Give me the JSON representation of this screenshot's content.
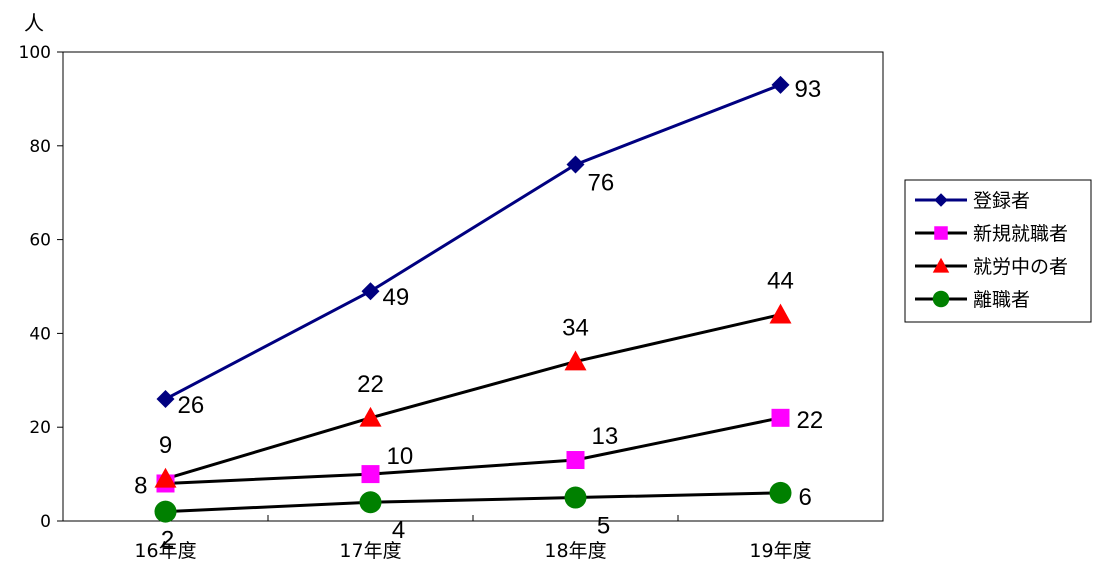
{
  "chart_data": {
    "type": "line",
    "unit_label": "人",
    "categories": [
      "16年度",
      "17年度",
      "18年度",
      "19年度"
    ],
    "ylim": [
      0,
      100
    ],
    "yticks": [
      0,
      20,
      40,
      60,
      80,
      100
    ],
    "grid": false,
    "legend_position": "right",
    "series": [
      {
        "name": "登録者",
        "values": [
          26,
          49,
          76,
          93
        ],
        "color": "#000080",
        "marker": "diamond",
        "marker_color": "#000080"
      },
      {
        "name": "新規就職者",
        "values": [
          8,
          10,
          13,
          22
        ],
        "color": "#000000",
        "marker": "square",
        "marker_color": "#ff00ff"
      },
      {
        "name": "就労中の者",
        "values": [
          9,
          22,
          34,
          44
        ],
        "color": "#000000",
        "marker": "triangle",
        "marker_color": "#ff0000"
      },
      {
        "name": "離職者",
        "values": [
          2,
          4,
          5,
          6
        ],
        "color": "#000000",
        "marker": "circle",
        "marker_color": "#008000"
      }
    ]
  }
}
